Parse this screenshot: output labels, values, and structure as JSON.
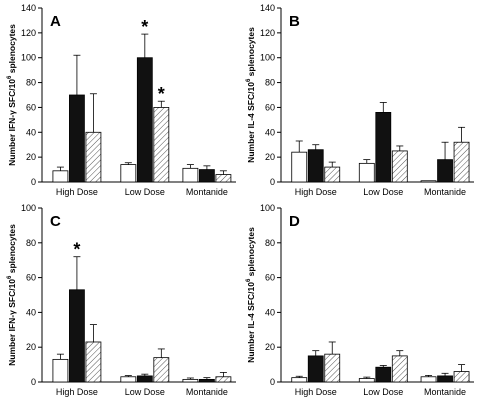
{
  "chart_data": [
    {
      "type": "bar",
      "panel": "A",
      "ylabel_parts": [
        "Number IFN-γ SFC/10",
        "6",
        " splenocytes"
      ],
      "categories": [
        "High Dose",
        "Low Dose",
        "Montanide"
      ],
      "ylim": [
        0,
        140
      ],
      "yticks": [
        0,
        20,
        40,
        60,
        80,
        100,
        120,
        140
      ],
      "series": [
        {
          "fill": "white",
          "values": [
            9,
            14,
            11
          ],
          "errors": [
            3,
            1.5,
            3
          ]
        },
        {
          "fill": "black",
          "values": [
            70,
            100,
            10
          ],
          "errors": [
            32,
            19,
            3
          ]
        },
        {
          "fill": "hatched",
          "values": [
            40,
            60,
            6
          ],
          "errors": [
            31,
            5,
            3
          ]
        }
      ],
      "annotations": [
        {
          "text": "*",
          "category": 1,
          "series": 1
        },
        {
          "text": "*",
          "category": 1,
          "series": 2
        }
      ]
    },
    {
      "type": "bar",
      "panel": "B",
      "ylabel_parts": [
        "Number IL-4 SFC/10",
        "6",
        " splenocytes"
      ],
      "categories": [
        "High Dose",
        "Low Dose",
        "Montanide"
      ],
      "ylim": [
        0,
        140
      ],
      "yticks": [
        0,
        20,
        40,
        60,
        80,
        100,
        120,
        140
      ],
      "series": [
        {
          "fill": "white",
          "values": [
            24,
            15,
            1
          ],
          "errors": [
            9,
            3,
            0
          ]
        },
        {
          "fill": "black",
          "values": [
            26,
            56,
            18
          ],
          "errors": [
            4,
            8,
            14
          ]
        },
        {
          "fill": "hatched",
          "values": [
            12,
            25,
            32
          ],
          "errors": [
            4,
            4,
            12
          ]
        }
      ],
      "annotations": []
    },
    {
      "type": "bar",
      "panel": "C",
      "ylabel_parts": [
        "Number IFN-γ SFC/10",
        "6",
        " splenocytes"
      ],
      "categories": [
        "High Dose",
        "Low Dose",
        "Montanide"
      ],
      "ylim": [
        0,
        100
      ],
      "yticks": [
        0,
        20,
        40,
        60,
        80,
        100
      ],
      "series": [
        {
          "fill": "white",
          "values": [
            13,
            3,
            1.5
          ],
          "errors": [
            3,
            0.7,
            0.8
          ]
        },
        {
          "fill": "black",
          "values": [
            53,
            3.5,
            1.5
          ],
          "errors": [
            19,
            1,
            1
          ]
        },
        {
          "fill": "hatched",
          "values": [
            23,
            14,
            3
          ],
          "errors": [
            10,
            5,
            2.5
          ]
        }
      ],
      "annotations": [
        {
          "text": "*",
          "category": 0,
          "series": 1
        }
      ]
    },
    {
      "type": "bar",
      "panel": "D",
      "ylabel_parts": [
        "Number IL-4 SFC/10",
        "6",
        " splenocytes"
      ],
      "categories": [
        "High Dose",
        "Low Dose",
        "Montanide"
      ],
      "ylim": [
        0,
        100
      ],
      "yticks": [
        0,
        20,
        40,
        60,
        80,
        100
      ],
      "series": [
        {
          "fill": "white",
          "values": [
            2.5,
            2,
            3
          ],
          "errors": [
            0.8,
            0.8,
            0.8
          ]
        },
        {
          "fill": "black",
          "values": [
            15,
            8.5,
            3.5
          ],
          "errors": [
            3,
            1,
            1.5
          ]
        },
        {
          "fill": "hatched",
          "values": [
            16,
            15,
            6
          ],
          "errors": [
            7,
            3,
            4
          ]
        }
      ],
      "annotations": []
    }
  ]
}
